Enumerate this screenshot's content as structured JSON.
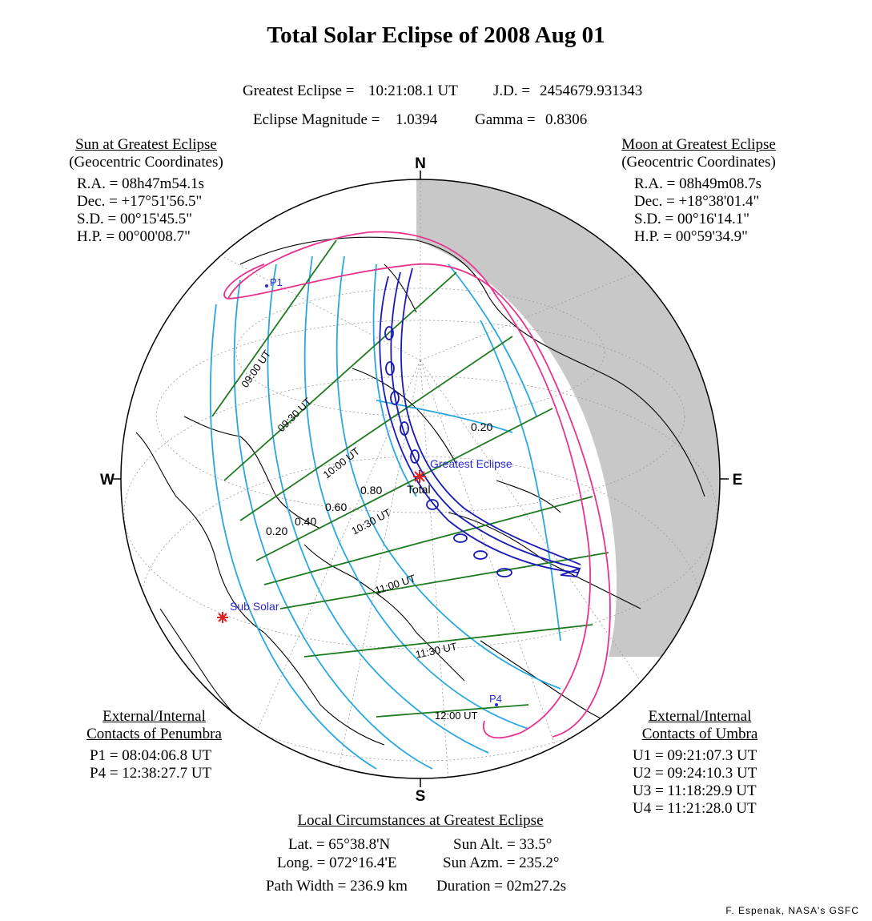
{
  "title": "Total Solar Eclipse of  2008 Aug 01",
  "header": {
    "greatest_eclipse_label": "Greatest Eclipse =",
    "greatest_eclipse_value": "10:21:08.1 UT",
    "jd_label": "J.D. =",
    "jd_value": "2454679.931343",
    "magnitude_label": "Eclipse Magnitude =",
    "magnitude_value": "1.0394",
    "gamma_label": "Gamma =",
    "gamma_value": "0.8306"
  },
  "sun": {
    "heading": "Sun at Greatest Eclipse",
    "subheading": "(Geocentric Coordinates)",
    "ra": "R.A. = 08h47m54.1s",
    "dec": "Dec. = +17°51'56.5\"",
    "sd": "S.D. =  00°15'45.5\"",
    "hp": "H.P. =  00°00'08.7\""
  },
  "moon": {
    "heading": "Moon at Greatest Eclipse",
    "subheading": "(Geocentric Coordinates)",
    "ra": "R.A. = 08h49m08.7s",
    "dec": "Dec. = +18°38'01.4\"",
    "sd": "S.D. =  00°16'14.1\"",
    "hp": "H.P. =  00°59'34.9\""
  },
  "penumbra": {
    "heading1": "External/Internal",
    "heading2": "Contacts of Penumbra",
    "p1": "P1 = 08:04:06.8 UT",
    "p4": "P4 = 12:38:27.7 UT"
  },
  "umbra": {
    "heading1": "External/Internal",
    "heading2": "Contacts of Umbra",
    "u1": "U1 = 09:21:07.3 UT",
    "u2": "U2 = 09:24:10.3 UT",
    "u3": "U3 = 11:18:29.9 UT",
    "u4": "U4 = 11:21:28.0 UT"
  },
  "local": {
    "heading": "Local Circumstances at Greatest Eclipse",
    "lat": "Lat. =  65°38.8'N",
    "long": "Long. = 072°16.4'E",
    "sun_alt": "Sun Alt. =   33.5°",
    "sun_azm": "Sun Azm. = 235.2°",
    "path_width": "Path Width = 236.9 km",
    "duration": "Duration =  02m27.2s"
  },
  "credit": "F. Espenak, NASA's GSFC",
  "map": {
    "compass": {
      "n": "N",
      "s": "S",
      "e": "E",
      "w": "W"
    },
    "contact_labels": {
      "p1": "P1",
      "p4": "P4"
    },
    "greatest_eclipse_label": "Greatest Eclipse",
    "total_label": "Total",
    "sub_solar_label": "Sub Solar",
    "time_labels": [
      "09:00 UT",
      "09:30 UT",
      "10:00 UT",
      "10:30 UT",
      "11:00 UT",
      "11:30 UT",
      "12:00 UT"
    ],
    "magnitude_labels_west": [
      "0.20",
      "0.40",
      "0.60",
      "0.80"
    ],
    "magnitude_labels_east": [
      "0.20"
    ],
    "colors": {
      "globe_outline": "#000000",
      "night_side": "#c8c8c8",
      "penumbra_limits": "#e8338f",
      "umbra_path": "#1a1ab8",
      "magnitude_curves": "#29a8e0",
      "time_lines": "#1e7a1e",
      "greatest_eclipse_marker": "#e02020",
      "sub_solar_marker": "#e02020",
      "label_blue": "#2a2ad0"
    }
  }
}
